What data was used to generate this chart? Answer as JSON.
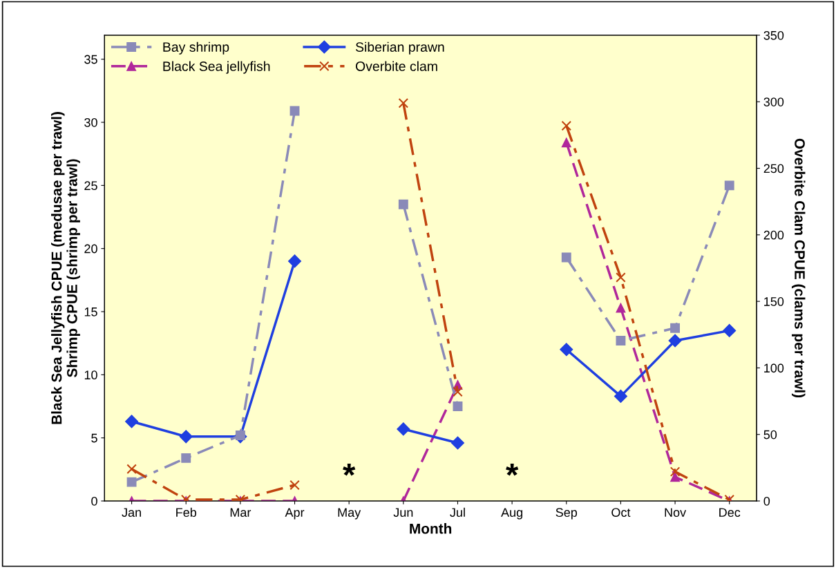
{
  "chart_data": {
    "type": "line",
    "xlabel": "Month",
    "ylabel": "Black Sea Jellyfish CPUE (medusae per trawl)\nShrimp CPUE (shrimp per trawl)",
    "y2label": "Overbite Clam CPUE (clams per trawl)",
    "categories": [
      "Jan",
      "Feb",
      "Mar",
      "Apr",
      "May",
      "Jun",
      "Jul",
      "Aug",
      "Sep",
      "Oct",
      "Nov",
      "Dec"
    ],
    "series": [
      {
        "name": "Bay shrimp",
        "color": "#8a8ab8",
        "marker": "square",
        "line_style": "dashdot",
        "values": [
          1.5,
          3.4,
          5.2,
          30.9,
          null,
          23.5,
          7.5,
          null,
          19.3,
          12.7,
          13.7,
          25
        ]
      },
      {
        "name": "Siberian prawn",
        "color": "#1f3fe0",
        "marker": "diamond",
        "line_style": "solid",
        "values": [
          6.3,
          5.1,
          5.1,
          19,
          null,
          5.7,
          4.6,
          null,
          12,
          8.3,
          12.7,
          13.5
        ]
      },
      {
        "name": "Black Sea jellyfish",
        "color": "#b0279b",
        "marker": "triangle",
        "line_style": "dashed",
        "values": [
          0,
          0,
          0,
          0,
          null,
          0,
          9.2,
          null,
          28.4,
          15.3,
          1.9,
          0
        ]
      },
      {
        "name": "Overbite clam",
        "color": "#c0430f",
        "marker": "cross",
        "line_style": "dashdot",
        "axis": "y2",
        "values": [
          24,
          1,
          1,
          12,
          null,
          299,
          82,
          null,
          282,
          168,
          22,
          1
        ]
      }
    ],
    "ylim": [
      0,
      36.9
    ],
    "yticks": [
      0,
      5,
      10,
      15,
      20,
      25,
      30,
      35
    ],
    "y2lim": [
      0,
      350
    ],
    "y2ticks": [
      0,
      50,
      100,
      150,
      200,
      250,
      300,
      350
    ],
    "annotations": [
      "*",
      "*"
    ],
    "legend": "top left",
    "grid": false
  }
}
